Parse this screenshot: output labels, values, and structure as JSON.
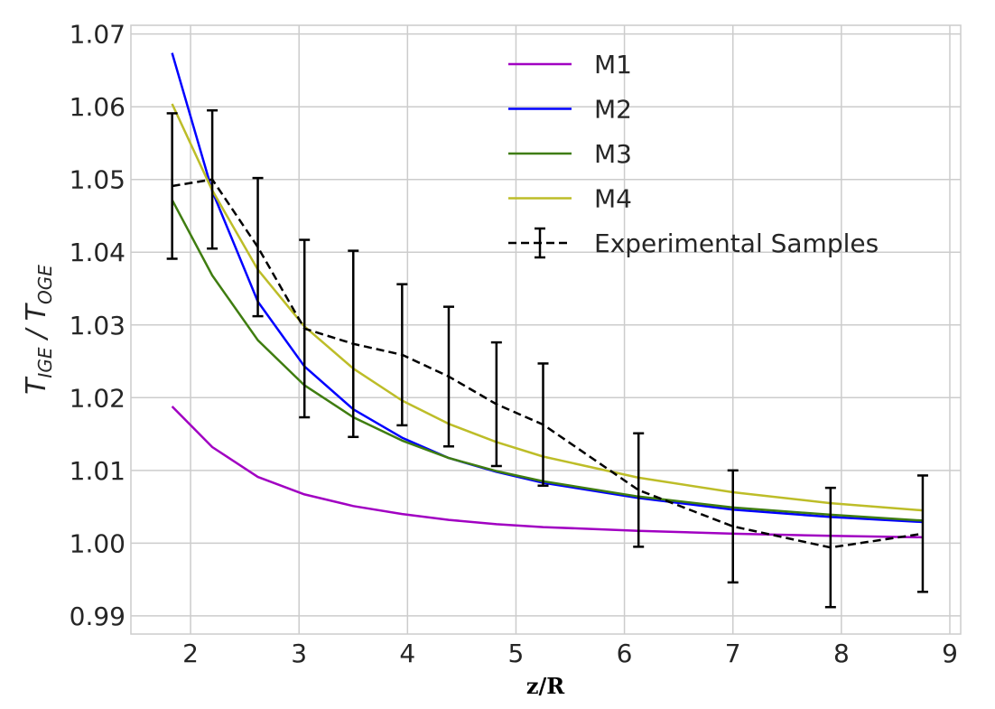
{
  "chart_data": {
    "type": "line",
    "xlabel": "z/R",
    "ylabel": {
      "base1": "T",
      "sub1": "IGE",
      "sep": " / ",
      "base2": "T",
      "sub2": "OGE"
    },
    "xlim": [
      1.45,
      9.1
    ],
    "ylim": [
      0.9875,
      1.0712
    ],
    "xticks": [
      2,
      3,
      4,
      5,
      6,
      7,
      8,
      9
    ],
    "xtick_labels": [
      "2",
      "3",
      "4",
      "5",
      "6",
      "7",
      "8",
      "9"
    ],
    "yticks": [
      0.99,
      1.0,
      1.01,
      1.02,
      1.03,
      1.04,
      1.05,
      1.06,
      1.07
    ],
    "ytick_labels": [
      "0.99",
      "1.00",
      "1.01",
      "1.02",
      "1.03",
      "1.04",
      "1.05",
      "1.06",
      "1.07"
    ],
    "grid": true,
    "legend_position": "top-right",
    "series": [
      {
        "name": "M1",
        "color": "#a100c2",
        "style": "solid",
        "x": [
          1.83,
          2.2,
          2.62,
          3.05,
          3.5,
          3.95,
          4.38,
          4.82,
          5.25,
          6.13,
          7.0,
          7.9,
          8.75
        ],
        "y": [
          1.0188,
          1.0132,
          1.0091,
          1.0067,
          1.0051,
          1.004,
          1.0032,
          1.0026,
          1.0022,
          1.0017,
          1.0013,
          1.001,
          1.0008
        ]
      },
      {
        "name": "M2",
        "color": "#0000ff",
        "style": "solid",
        "x": [
          1.83,
          2.2,
          2.62,
          3.05,
          3.5,
          3.95,
          4.38,
          4.82,
          5.25,
          6.13,
          7.0,
          7.9,
          8.75
        ],
        "y": [
          1.0674,
          1.0484,
          1.0332,
          1.0243,
          1.0184,
          1.0145,
          1.0117,
          1.0098,
          1.0083,
          1.0062,
          1.0046,
          1.0036,
          1.0029
        ]
      },
      {
        "name": "M3",
        "color": "#3f7d10",
        "style": "solid",
        "x": [
          1.83,
          2.2,
          2.62,
          3.05,
          3.5,
          3.95,
          4.38,
          4.82,
          5.25,
          6.13,
          7.0,
          7.9,
          8.75
        ],
        "y": [
          1.0472,
          1.0368,
          1.0279,
          1.0217,
          1.0173,
          1.0141,
          1.0117,
          1.0099,
          1.0085,
          1.0064,
          1.0049,
          1.0039,
          1.0031
        ]
      },
      {
        "name": "M4",
        "color": "#bdbd28",
        "style": "solid",
        "x": [
          1.83,
          2.2,
          2.62,
          3.05,
          3.5,
          3.95,
          4.38,
          4.82,
          5.25,
          6.13,
          7.0,
          7.9,
          8.75
        ],
        "y": [
          1.0604,
          1.0485,
          1.0376,
          1.0298,
          1.024,
          1.0196,
          1.0164,
          1.0139,
          1.0119,
          1.009,
          1.007,
          1.0055,
          1.0045
        ]
      },
      {
        "name": "Experimental Samples",
        "color": "#000000",
        "style": "dashed",
        "errorbars": true,
        "x": [
          1.83,
          2.2,
          2.62,
          3.05,
          3.5,
          3.95,
          4.38,
          4.82,
          5.25,
          6.13,
          7.0,
          7.9,
          8.75
        ],
        "y": [
          1.0491,
          1.05,
          1.0407,
          1.0295,
          1.0274,
          1.0259,
          1.0229,
          1.0191,
          1.0163,
          1.0073,
          1.0023,
          0.9994,
          1.0013
        ],
        "err": [
          0.01,
          0.0095,
          0.0095,
          0.0122,
          0.0128,
          0.0097,
          0.0096,
          0.0085,
          0.0084,
          0.0078,
          0.0077,
          0.0082,
          0.008
        ]
      }
    ]
  }
}
